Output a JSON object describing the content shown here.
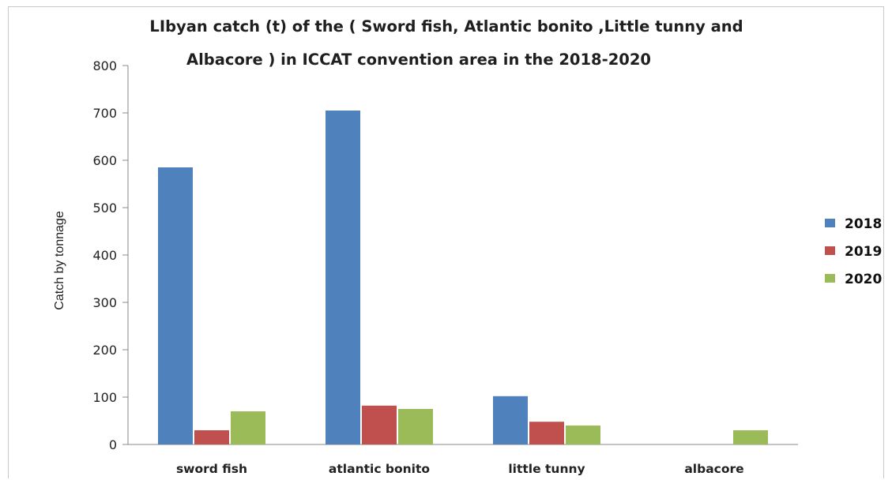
{
  "chart_data": {
    "type": "bar",
    "title_line1": "LIbyan catch (t) of the ( Sword fish, Atlantic bonito ,Little tunny and",
    "title_line2": "Albacore ) in ICCAT convention area in the 2018-2020",
    "xlabel": "",
    "ylabel": "Catch by tonnage",
    "ylim": [
      0,
      800
    ],
    "yticks": [
      "0",
      "100",
      "200",
      "300",
      "400",
      "500",
      "600",
      "700",
      "800"
    ],
    "categories": [
      "sword fish",
      "atlantic bonito",
      "little tunny",
      "albacore"
    ],
    "series": [
      {
        "name": "2018",
        "color": "#4f81bd",
        "values": [
          585,
          705,
          102,
          0
        ]
      },
      {
        "name": "2019",
        "color": "#c0504d",
        "values": [
          30,
          82,
          48,
          0
        ]
      },
      {
        "name": "2020",
        "color": "#9bbb59",
        "values": [
          70,
          75,
          40,
          30
        ]
      }
    ],
    "grid": false,
    "legend_position": "right"
  }
}
